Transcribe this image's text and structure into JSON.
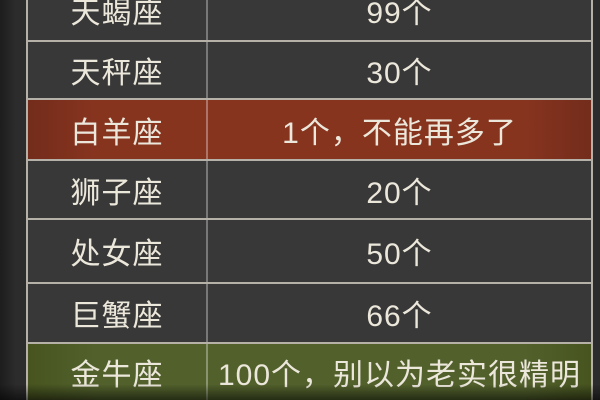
{
  "chart_data": {
    "type": "table",
    "rows": [
      [
        "天蝎座",
        "99个"
      ],
      [
        "天秤座",
        "30个"
      ],
      [
        "白羊座",
        "1个，不能再多了"
      ],
      [
        "狮子座",
        "20个"
      ],
      [
        "处女座",
        "50个"
      ],
      [
        "巨蟹座",
        "66个"
      ],
      [
        "金牛座",
        "100个，别以为老实很精明"
      ]
    ],
    "highlighted_rows": [
      {
        "row": "白羊座",
        "color": "red"
      },
      {
        "row": "金牛座",
        "color": "green"
      }
    ],
    "layout": "two-column table, first row clipped at top edge, last row clipped at bottom edge"
  },
  "table": {
    "rows": [
      {
        "name": "天蝎座",
        "value": "99个",
        "highlight": "none"
      },
      {
        "name": "天秤座",
        "value": "30个",
        "highlight": "none"
      },
      {
        "name": "白羊座",
        "value": "1个，不能再多了",
        "highlight": "red"
      },
      {
        "name": "狮子座",
        "value": "20个",
        "highlight": "none"
      },
      {
        "name": "处女座",
        "value": "50个",
        "highlight": "none"
      },
      {
        "name": "巨蟹座",
        "value": "66个",
        "highlight": "none"
      },
      {
        "name": "金牛座",
        "value": "100个，别以为老实很精明",
        "highlight": "green"
      }
    ]
  },
  "colors": {
    "page_bg": "#2c2c2c",
    "row_default_bg": "#383838",
    "row_red_bg": "#87341f",
    "row_green_bg": "#52612c",
    "text": "#ece7db",
    "border": "#b5b1a8"
  }
}
